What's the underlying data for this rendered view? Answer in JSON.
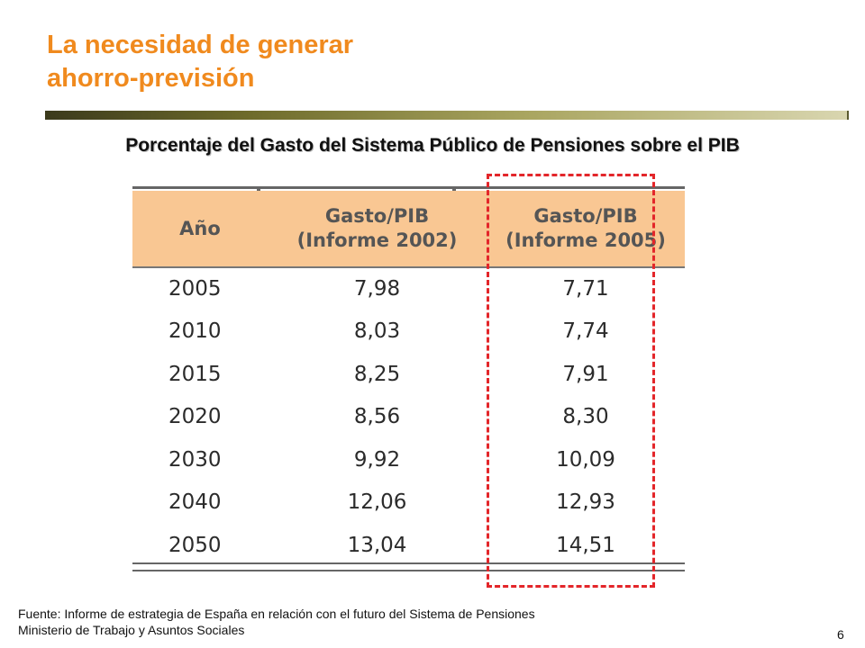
{
  "slide": {
    "title_line1": "La necesidad de generar",
    "title_line2": "ahorro-previsión",
    "subtitle": "Porcentaje del Gasto del Sistema Público de Pensiones sobre el PIB",
    "page_number": "6"
  },
  "table": {
    "headers": [
      "Año",
      "Gasto/PIB",
      "(Informe 2002)",
      "Gasto/PIB",
      "(Informe 2005)"
    ],
    "rows": [
      [
        "2005",
        "7,98",
        "7,71"
      ],
      [
        "2010",
        "8,03",
        "7,74"
      ],
      [
        "2015",
        "8,25",
        "7,91"
      ],
      [
        "2020",
        "8,56",
        "8,30"
      ],
      [
        "2030",
        "9,92",
        "10,09"
      ],
      [
        "2040",
        "12,06",
        "12,93"
      ],
      [
        "2050",
        "13,04",
        "14,51"
      ]
    ]
  },
  "footer": {
    "line1": "Fuente: Informe de estrategia de España en relación con el futuro del Sistema de Pensiones",
    "line2": "Ministerio de Trabajo y Asuntos Sociales"
  },
  "colors": {
    "title": "#f08a1e",
    "header_bg": "#f9c793",
    "highlight_border": "#e3262a"
  }
}
